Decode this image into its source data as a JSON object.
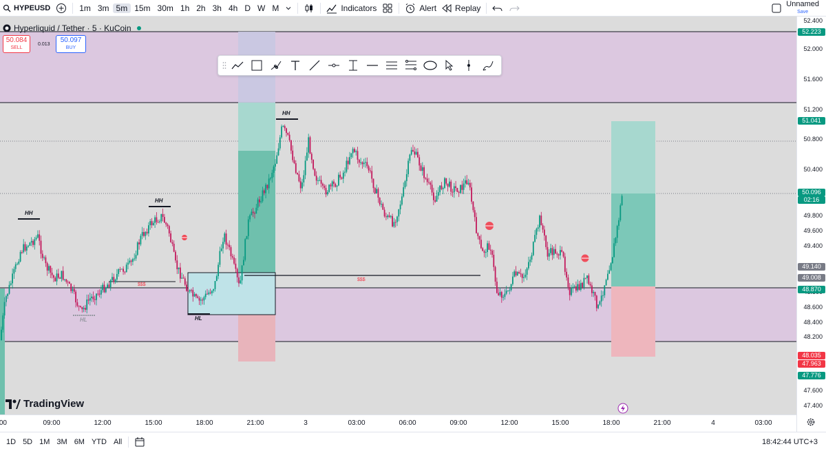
{
  "toolbar": {
    "symbol": "HYPEUSD",
    "timeframes": [
      "1m",
      "3m",
      "5m",
      "15m",
      "30m",
      "1h",
      "2h",
      "3h",
      "4h",
      "D",
      "W",
      "M"
    ],
    "active_timeframe": "5m",
    "indicators_label": "Indicators",
    "alert_label": "Alert",
    "replay_label": "Replay",
    "layout_name": "Unnamed",
    "save_label": "Save"
  },
  "legend": {
    "title": "Hyperliquid / Tether · 5 · KuCoin",
    "sell_price": "50.084",
    "sell_label": "SELL",
    "spread": "0.013",
    "buy_price": "50.097",
    "buy_label": "BUY"
  },
  "price_axis": {
    "labels": [
      "52.400",
      "52.000",
      "51.600",
      "51.200",
      "50.800",
      "50.400",
      "49.800",
      "49.600",
      "49.400",
      "48.800",
      "48.600",
      "48.400",
      "48.200",
      "47.600",
      "47.400"
    ],
    "tags": [
      {
        "text": "52.223",
        "color": "#089981"
      },
      {
        "text": "51.041",
        "color": "#089981"
      },
      {
        "text": "50.096",
        "text2": "02:16",
        "color": "#089981"
      },
      {
        "text": "49.140",
        "color": "#787b86"
      },
      {
        "text": "49.008",
        "color": "#787b86"
      },
      {
        "text": "48.870",
        "color": "#089981"
      },
      {
        "text": "48.035",
        "text2": "47.963",
        "color": "#f23645"
      },
      {
        "text": "47.776",
        "color": "#089981"
      }
    ]
  },
  "time_axis": {
    "labels": [
      ":00",
      "09:00",
      "12:00",
      "15:00",
      "18:00",
      "21:00",
      "3",
      "03:00",
      "06:00",
      "09:00",
      "12:00",
      "15:00",
      "18:00",
      "21:00",
      "4",
      "03:00"
    ]
  },
  "annotations": {
    "hh1": "HH",
    "hh2": "HH",
    "hh3": "HH",
    "hl1": "HL",
    "hl2": "HL",
    "liq1": "$$$",
    "liq2": "$$$"
  },
  "branding": {
    "logo_text": "TradingView"
  },
  "bottom_bar": {
    "ranges": [
      "1D",
      "5D",
      "1M",
      "3M",
      "6M",
      "YTD",
      "All"
    ],
    "clock": "18:42:44 UTC+3"
  },
  "colors": {
    "up": "#089981",
    "down": "#c2185b",
    "zone_purple": "#dcc8e0",
    "tp_zone": "#a7d8cf",
    "sl_zone": "#f2b6bd",
    "box_blue": "#bfe3e8"
  },
  "drawing_tools": [
    "trend-line-icon",
    "rectangle-icon",
    "path-icon",
    "text-icon",
    "ray-icon",
    "horizontal-ray-icon",
    "price-label-icon",
    "horizontal-line-icon",
    "parallel-channel-icon",
    "fib-icon",
    "ellipse-icon",
    "arrow-cursor-icon",
    "vertical-line-icon",
    "brush-icon"
  ],
  "chart_data": {
    "type": "candlestick",
    "symbol": "HYPEUSD",
    "last_price": 50.096,
    "ylim": [
      47.3,
      52.5
    ]
  }
}
